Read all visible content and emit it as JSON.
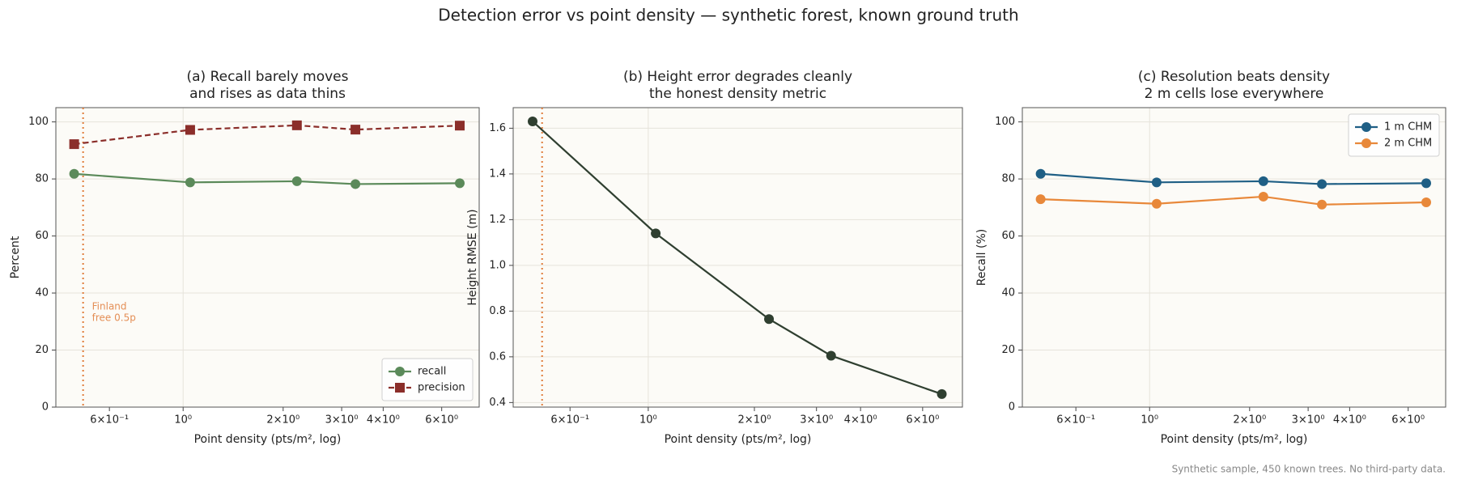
{
  "title": "Detection error vs point density — synthetic forest, known ground truth",
  "footnote": "Synthetic sample, 450 known trees. No third-party data.",
  "chart_data": [
    {
      "type": "line",
      "title": [
        "(a) Recall barely moves",
        "and rises as data thins"
      ],
      "x_label": "Point density (pts/m², log)",
      "y_label": "Percent",
      "xscale": "log",
      "x": [
        0.47,
        1.05,
        2.2,
        3.3,
        6.8
      ],
      "series": [
        {
          "name": "recall",
          "color": "#5b8a5a",
          "marker": "circle",
          "linestyle": "solid",
          "values": [
            81.8,
            78.8,
            79.2,
            78.2,
            78.5
          ]
        },
        {
          "name": "precision",
          "color": "#8b2e2a",
          "marker": "square",
          "linestyle": "dashed",
          "values": [
            92.2,
            97.2,
            98.8,
            97.3,
            98.7
          ]
        }
      ],
      "xlim": [
        0.414,
        7.78
      ],
      "xticks": [
        {
          "value": 0.6,
          "label": "6×10⁻¹"
        },
        {
          "value": 1,
          "label": "10⁰"
        },
        {
          "value": 2,
          "label": "2×10⁰"
        },
        {
          "value": 3,
          "label": "3×10⁰"
        },
        {
          "value": 4,
          "label": "4×10⁰"
        },
        {
          "value": 6,
          "label": "6×10⁰"
        }
      ],
      "ylim": [
        0,
        105
      ],
      "yticks": [
        0,
        20,
        40,
        60,
        80,
        100
      ],
      "grid": true,
      "legend": "lower right",
      "vline": 0.5,
      "vline_color": "#e07b39",
      "annotation": [
        "Finland",
        "free 0.5p"
      ]
    },
    {
      "type": "line",
      "title": [
        "(b) Height error degrades cleanly",
        "the honest density metric"
      ],
      "x_label": "Point density (pts/m², log)",
      "y_label": "Height RMSE (m)",
      "xscale": "log",
      "x": [
        0.47,
        1.05,
        2.2,
        3.3,
        6.8
      ],
      "series": [
        {
          "name": "RMSE",
          "color": "#2f3f30",
          "marker": "circle",
          "linestyle": "solid",
          "values": [
            1.63,
            1.14,
            0.765,
            0.605,
            0.437
          ]
        }
      ],
      "xlim": [
        0.414,
        7.78
      ],
      "xticks": [
        {
          "value": 0.6,
          "label": "6×10⁻¹"
        },
        {
          "value": 1,
          "label": "10⁰"
        },
        {
          "value": 2,
          "label": "2×10⁰"
        },
        {
          "value": 3,
          "label": "3×10⁰"
        },
        {
          "value": 4,
          "label": "4×10⁰"
        },
        {
          "value": 6,
          "label": "6×10⁰"
        }
      ],
      "ylim": [
        0.38,
        1.69
      ],
      "yticks": [
        0.4,
        0.6,
        0.8,
        {
          "value": 1,
          "label": "1.0"
        },
        1.2,
        1.4,
        1.6
      ],
      "grid": true,
      "vline": 0.5,
      "vline_color": "#e07b39"
    },
    {
      "type": "line",
      "title": [
        "(c) Resolution beats density",
        "2 m cells lose everywhere"
      ],
      "x_label": "Point density (pts/m², log)",
      "y_label": "Recall (%)",
      "xscale": "log",
      "x": [
        0.47,
        1.05,
        2.2,
        3.3,
        6.8
      ],
      "series": [
        {
          "name": "1 m CHM",
          "color": "#1f5f85",
          "marker": "circle",
          "linestyle": "solid",
          "values": [
            81.8,
            78.8,
            79.2,
            78.2,
            78.5
          ]
        },
        {
          "name": "2 m CHM",
          "color": "#e8883a",
          "marker": "circle",
          "linestyle": "solid",
          "values": [
            72.9,
            71.3,
            73.8,
            71.0,
            71.8
          ]
        }
      ],
      "xlim": [
        0.414,
        7.78
      ],
      "xticks": [
        {
          "value": 0.6,
          "label": "6×10⁻¹"
        },
        {
          "value": 1,
          "label": "10⁰"
        },
        {
          "value": 2,
          "label": "2×10⁰"
        },
        {
          "value": 3,
          "label": "3×10⁰"
        },
        {
          "value": 4,
          "label": "4×10⁰"
        },
        {
          "value": 6,
          "label": "6×10⁰"
        }
      ],
      "ylim": [
        0,
        105
      ],
      "yticks": [
        0,
        20,
        40,
        60,
        80,
        100
      ],
      "grid": true,
      "legend": "upper right"
    }
  ]
}
